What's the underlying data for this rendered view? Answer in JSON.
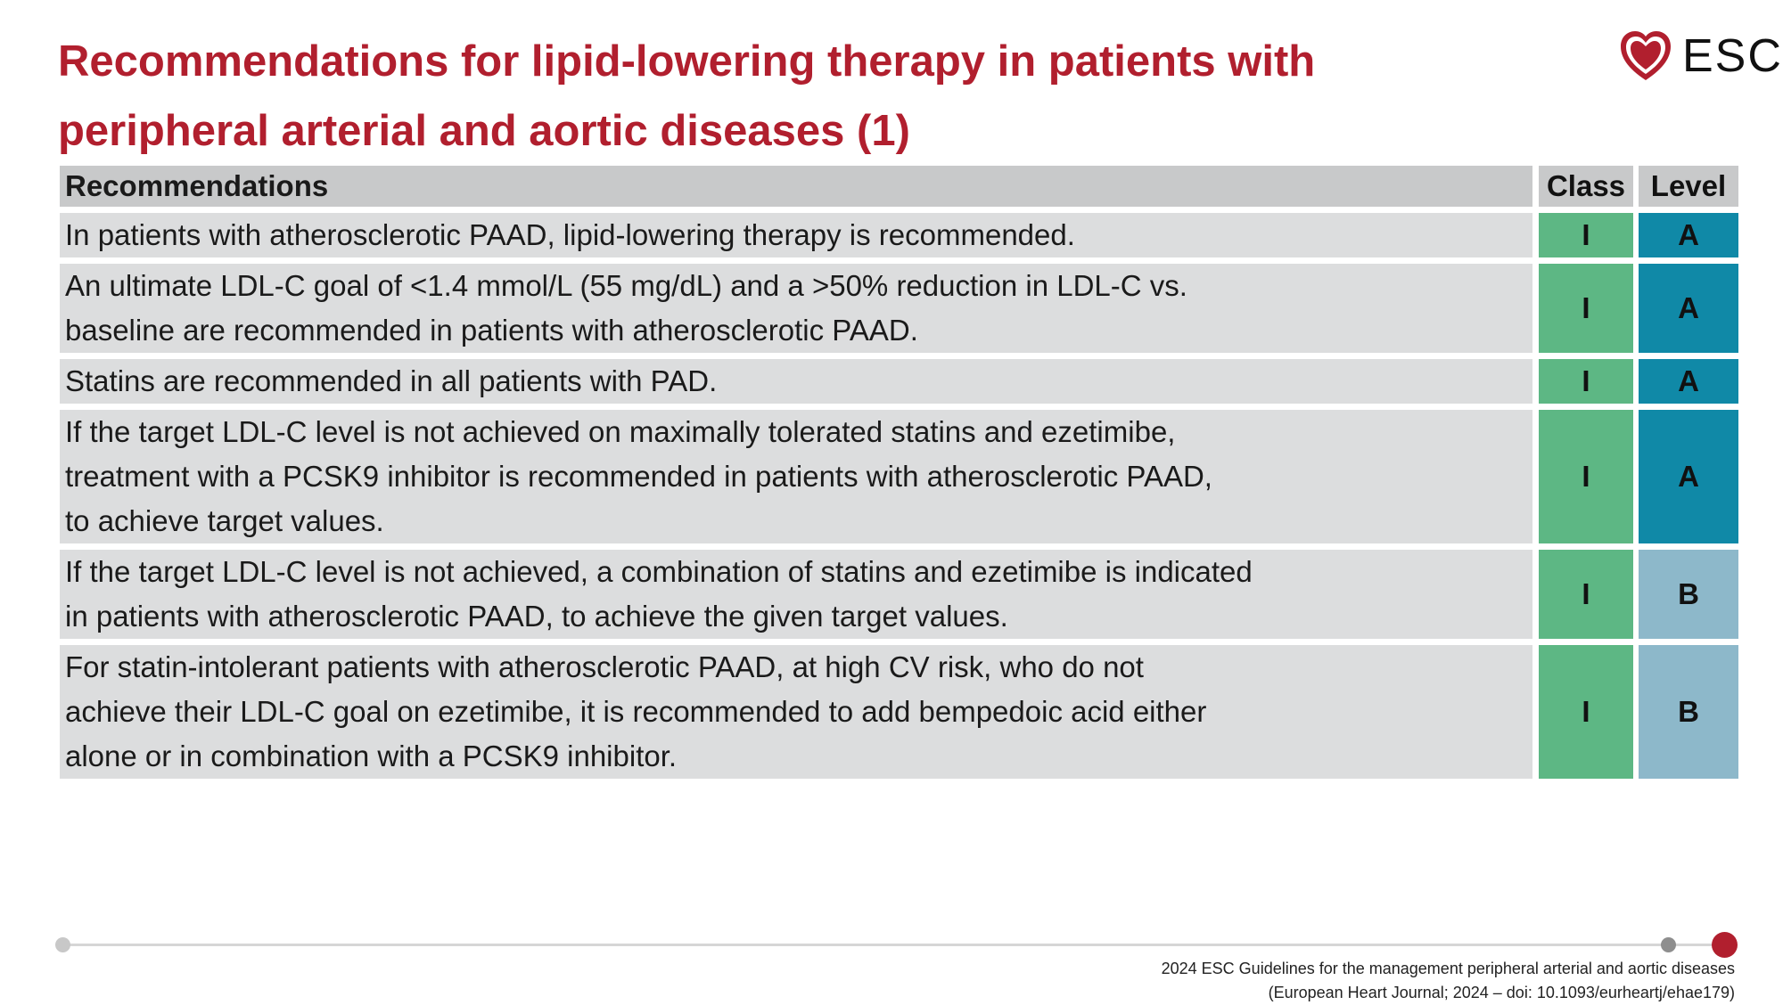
{
  "title": {
    "line1": "Recommendations for lipid-lowering therapy in patients with",
    "line2": "peripheral arterial and aortic diseases (1)"
  },
  "logo": {
    "text": "ESC",
    "icon": "heart-logo-icon"
  },
  "colors": {
    "title": "#B11F2E",
    "class_I": "#5DB784",
    "level_A": "#1089A7",
    "level_B": "#8DB8CA",
    "header_bg": "#C8C9CA",
    "row_bg": "#DCDDDE"
  },
  "table": {
    "headers": {
      "recommendations": "Recommendations",
      "class": "Class",
      "level": "Level"
    },
    "rows": [
      {
        "lines": [
          "In patients with atherosclerotic PAAD, lipid-lowering therapy is recommended."
        ],
        "class": "I",
        "level": "A"
      },
      {
        "lines": [
          "An ultimate LDL-C goal of <1.4 mmol/L (55 mg/dL) and a >50% reduction in LDL-C vs.",
          "baseline are recommended in patients with atherosclerotic PAAD."
        ],
        "class": "I",
        "level": "A"
      },
      {
        "lines": [
          "Statins are recommended in all patients with PAD."
        ],
        "class": "I",
        "level": "A"
      },
      {
        "lines": [
          "If the target LDL-C level is not achieved on maximally tolerated statins and ezetimibe,",
          "treatment with a PCSK9 inhibitor is recommended in patients with atherosclerotic PAAD,",
          "to achieve target values."
        ],
        "class": "I",
        "level": "A"
      },
      {
        "lines": [
          "If the target LDL-C level is not achieved, a combination of statins and ezetimibe is indicated",
          "in patients with atherosclerotic PAAD, to achieve the given target values."
        ],
        "class": "I",
        "level": "B"
      },
      {
        "lines": [
          "For statin-intolerant patients with atherosclerotic PAAD, at high CV risk, who do not",
          "achieve their LDL-C goal on ezetimibe, it is recommended to add bempedoic acid either",
          "alone or in combination with a PCSK9 inhibitor."
        ],
        "class": "I",
        "level": "B"
      }
    ]
  },
  "footer": {
    "line1": "2024 ESC Guidelines for the management peripheral arterial and aortic diseases",
    "line2": "(European Heart Journal; 2024 – doi: 10.1093/eurheartj/ehae179)"
  }
}
